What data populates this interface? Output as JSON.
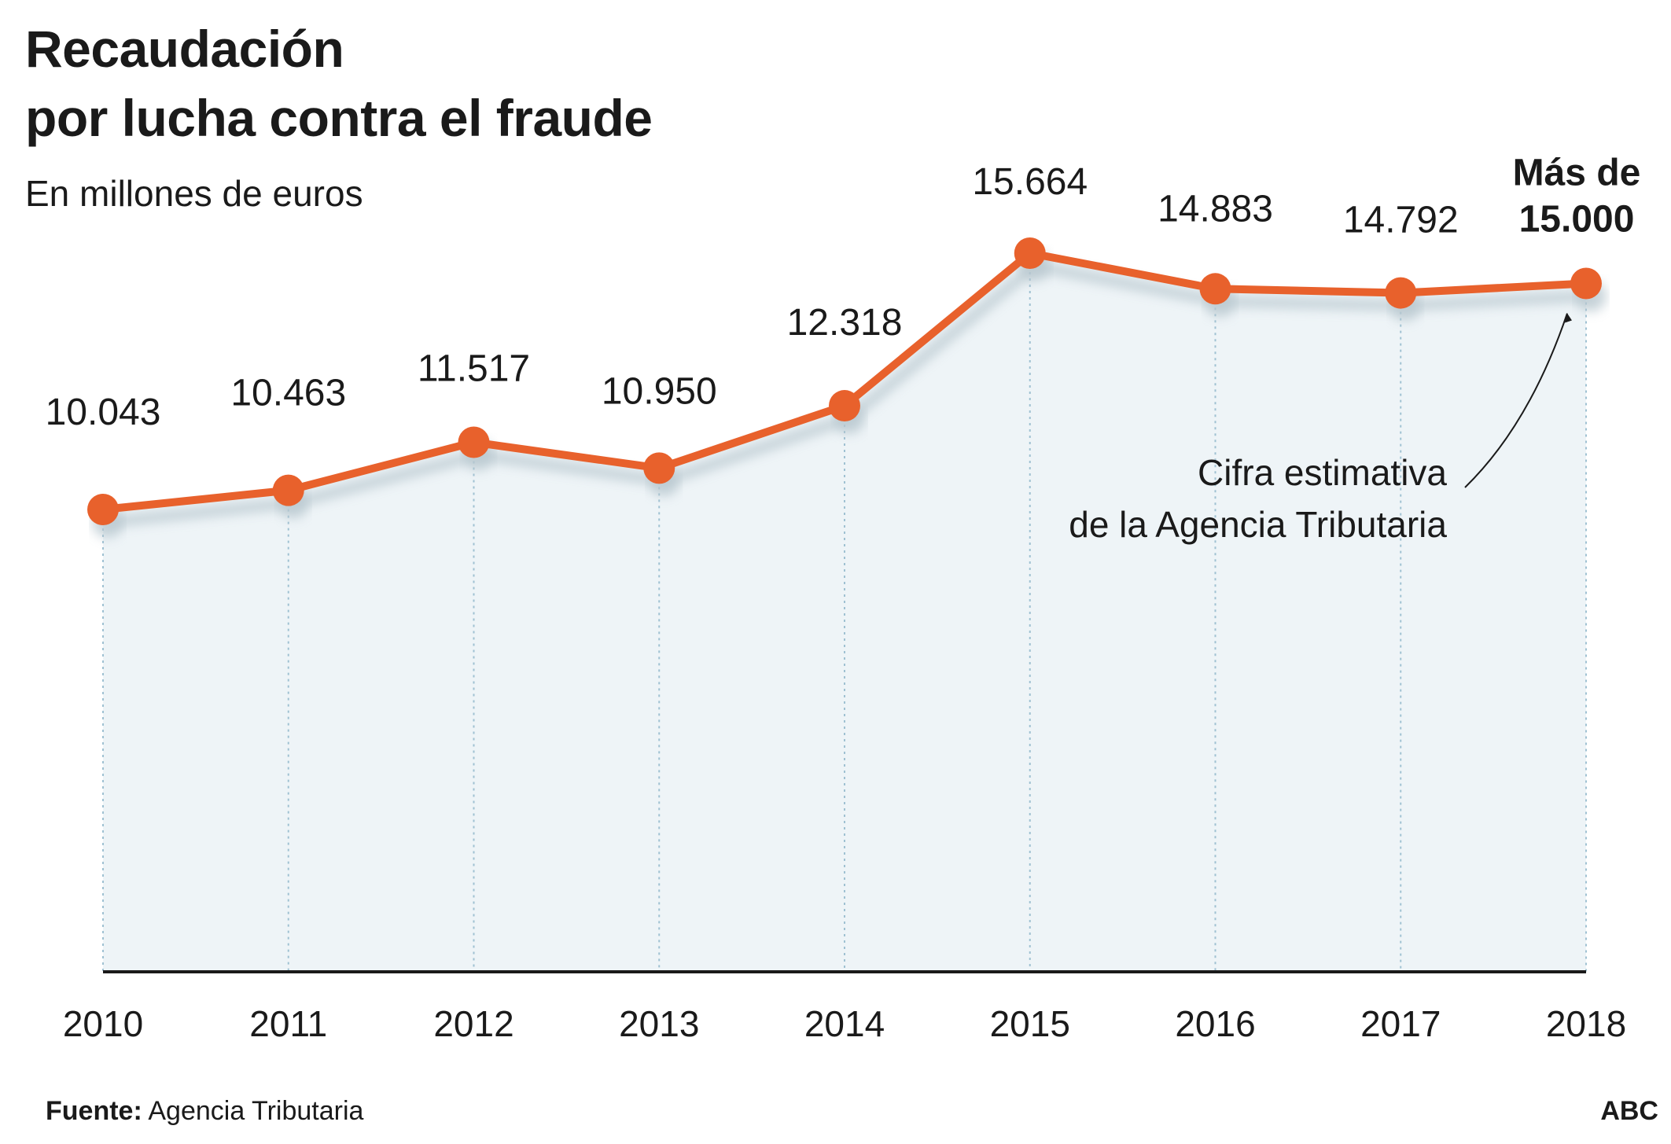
{
  "header": {
    "title_line1": "Recaudación",
    "title_line2": "por lucha contra el fraude",
    "subtitle": "En millones de euros"
  },
  "chart_data": {
    "type": "area",
    "title": "Recaudación por lucha contra el fraude",
    "subtitle": "En millones de euros",
    "xlabel": "",
    "ylabel": "",
    "categories": [
      "2010",
      "2011",
      "2012",
      "2013",
      "2014",
      "2015",
      "2016",
      "2017",
      "2018"
    ],
    "values": [
      10043,
      10463,
      11517,
      10950,
      12318,
      15664,
      14883,
      14792,
      15000
    ],
    "value_labels": [
      "10.043",
      "10.463",
      "11.517",
      "10.950",
      "12.318",
      "15.664",
      "14.883",
      "14.792",
      "15.000"
    ],
    "last_label_prefix": "Más de",
    "ylim": [
      0,
      17000
    ],
    "grid": false,
    "annotation": {
      "line1": "Cifra estimativa",
      "line2": "de la Agencia Tributaria",
      "target_category": "2018"
    },
    "colors": {
      "line": "#e8612c",
      "area": "#eef4f7",
      "dropline": "#9fc1d2",
      "axis": "#1a1a1a",
      "shadow": "#b8c7cf"
    }
  },
  "footer": {
    "source_label": "Fuente:",
    "source_value": "Agencia Tributaria",
    "brand": "ABC"
  }
}
